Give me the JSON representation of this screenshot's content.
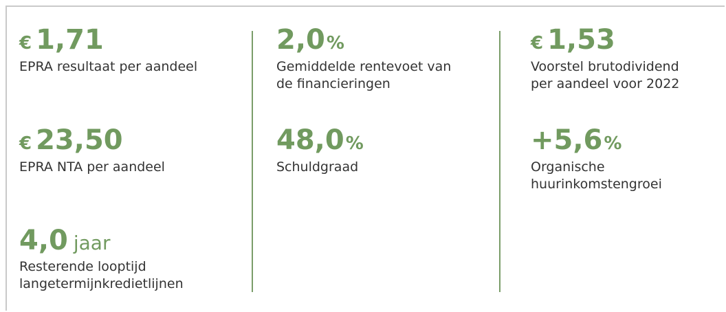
{
  "columns": [
    {
      "items": [
        {
          "prefix": "€",
          "value": "1,71",
          "label": [
            "EPRA resultaat per aandeel"
          ]
        },
        {
          "prefix": "€",
          "value": "23,50",
          "label": [
            "EPRA NTA per aandeel"
          ]
        },
        {
          "value": "4,0",
          "suffix": "jaar",
          "label": [
            "Resterende looptijd",
            "langetermijnkredietlijnen"
          ]
        }
      ]
    },
    {
      "items": [
        {
          "value": "2,0",
          "suffix": "%",
          "label": [
            "Gemiddelde rentevoet van",
            "de financieringen"
          ]
        },
        {
          "value": "48,0",
          "suffix": "%",
          "label": [
            "Schuldgraad"
          ]
        }
      ]
    },
    {
      "items": [
        {
          "prefix": "€",
          "value": "1,53",
          "label": [
            "Voorstel brutodividend",
            "per aandeel voor 2022"
          ]
        },
        {
          "value": "+5,6",
          "suffix": "%",
          "label": [
            "Organische",
            "huurinkomstengroei"
          ]
        }
      ]
    }
  ]
}
